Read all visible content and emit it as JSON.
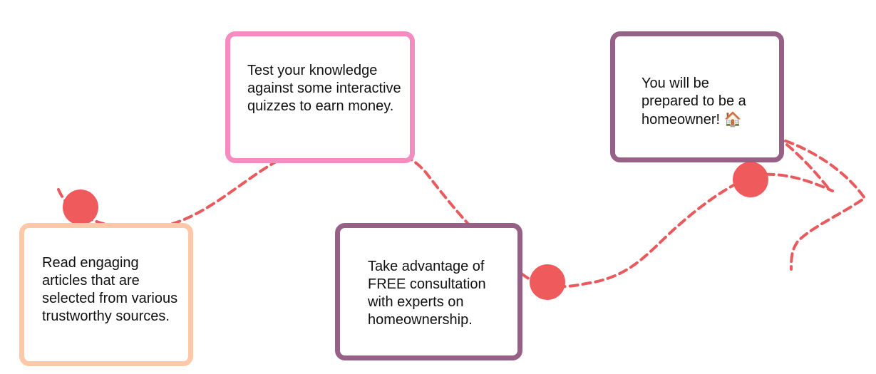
{
  "colors": {
    "path": "#e85a5d",
    "dot": "#ef5a5d",
    "peach": "#ffc8a8",
    "pink": "#f48cbf",
    "plum": "#966087"
  },
  "steps": [
    {
      "text": "Read engaging articles that are selected from various trustworthy sources.",
      "border": "peach"
    },
    {
      "text": "Test your knowledge against some interactive quizzes to earn money.",
      "border": "pink"
    },
    {
      "text": "Take advantage of FREE consultation with experts on homeownership.",
      "border": "plum"
    },
    {
      "text": "You will be prepared to be a homeowner!",
      "emoji": "🏠",
      "emoji_name": "house-icon",
      "border": "plum"
    }
  ]
}
